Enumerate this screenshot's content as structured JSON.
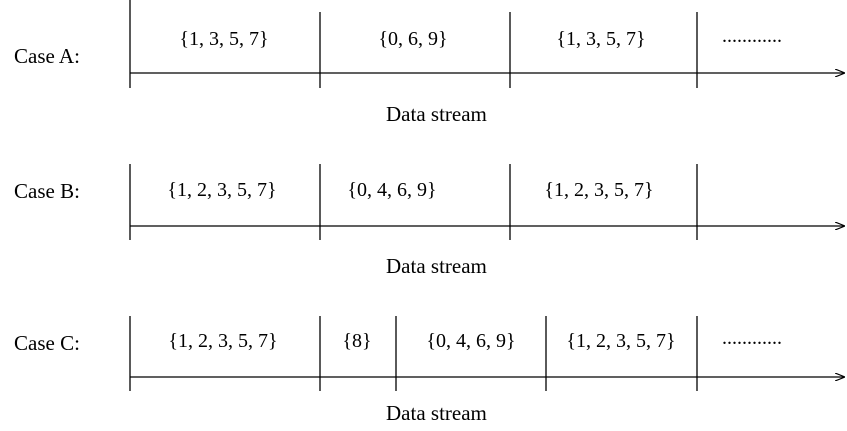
{
  "caseA": {
    "label": "Case A:",
    "sets": [
      "{1, 3, 5, 7}",
      "{0, 6, 9}",
      "{1, 3, 5, 7}"
    ],
    "continuation": "............",
    "caption": "Data stream"
  },
  "caseB": {
    "label": "Case B:",
    "sets": [
      "{1, 2, 3, 5, 7}",
      "{0, 4, 6, 9}",
      "{1, 2, 3, 5, 7}"
    ],
    "caption": "Data stream"
  },
  "caseC": {
    "label": "Case C:",
    "sets": [
      "{1, 2, 3, 5, 7}",
      "{8}",
      "{0, 4, 6, 9}",
      "{1, 2, 3, 5, 7}"
    ],
    "continuation": "............",
    "caption": "Data stream"
  },
  "colors": {
    "line": "#000000",
    "background": "#ffffff"
  }
}
